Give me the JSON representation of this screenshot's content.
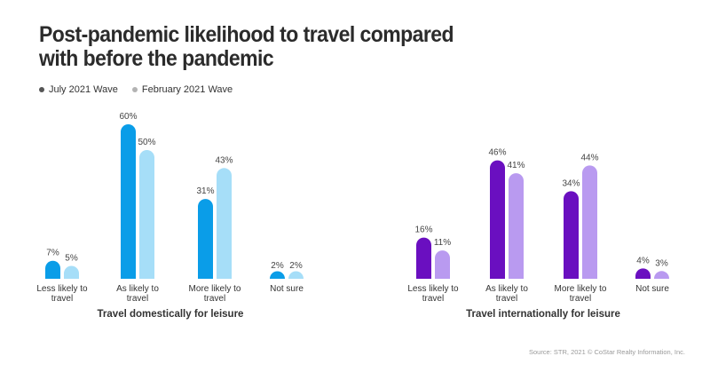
{
  "title": "Post-pandemic likelihood to travel compared\nwith before the pandemic",
  "source": "Source: STR, 2021 © CoStar Realty Information, Inc.",
  "legend": [
    {
      "label": "July 2021 Wave",
      "color": "#555555"
    },
    {
      "label": "February 2021 Wave",
      "color": "#b3b3b3"
    }
  ],
  "chart_data": [
    {
      "type": "bar",
      "title": "",
      "xlabel": "Travel domestically for leisure",
      "ylabel": "",
      "unit": "%",
      "ylim": [
        0,
        65
      ],
      "grid": false,
      "legend_position": "top-left",
      "categories": [
        "Less likely to\ntravel",
        "As likely to\ntravel",
        "More likely to\ntravel",
        "Not sure"
      ],
      "series": [
        {
          "name": "July 2021 Wave",
          "color": "#0a9de8",
          "values": [
            7,
            60,
            31,
            2
          ]
        },
        {
          "name": "February 2021 Wave",
          "color": "#a6def8",
          "values": [
            5,
            50,
            43,
            2
          ]
        }
      ]
    },
    {
      "type": "bar",
      "title": "",
      "xlabel": "Travel internationally for leisure",
      "ylabel": "",
      "unit": "%",
      "ylim": [
        0,
        65
      ],
      "grid": false,
      "legend_position": "top-left",
      "categories": [
        "Less likely to\ntravel",
        "As likely to\ntravel",
        "More likely to\ntravel",
        "Not sure"
      ],
      "series": [
        {
          "name": "July 2021 Wave",
          "color": "#6a0fc0",
          "values": [
            16,
            46,
            34,
            4
          ]
        },
        {
          "name": "February 2021 Wave",
          "color": "#b99af0",
          "values": [
            11,
            41,
            44,
            3
          ]
        }
      ]
    }
  ]
}
